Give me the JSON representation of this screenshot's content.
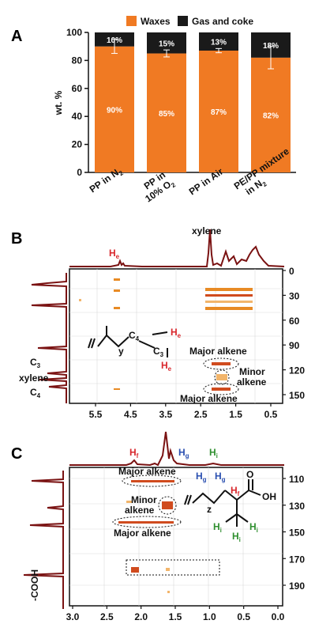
{
  "colors": {
    "waxes": "#f07a23",
    "gas_coke": "#1a1a1a",
    "trace": "#7a1212",
    "red_label": "#d8262b",
    "blue_label": "#2a4fb0",
    "green_label": "#2f8f2f"
  },
  "chart_data": [
    {
      "panel": "A",
      "type": "bar",
      "ylabel": "wt. %",
      "ylim": [
        0,
        100
      ],
      "yticks": [
        "0",
        "20",
        "40",
        "60",
        "80",
        "100"
      ],
      "categories": [
        "PP in N2",
        "PP in 10% O2",
        "PP in Air",
        "PE/PP mixture in N2"
      ],
      "legend": [
        "Waxes",
        "Gas and coke"
      ],
      "legend_position": "top",
      "series": [
        {
          "name": "Waxes",
          "values": [
            90,
            85,
            87,
            82
          ],
          "labels": [
            "90%",
            "85%",
            "87%",
            "82%"
          ],
          "error": [
            5,
            2.5,
            1.5,
            8
          ]
        },
        {
          "name": "Gas and coke",
          "values": [
            10,
            15,
            13,
            18
          ],
          "labels": [
            "10%",
            "15%",
            "13%",
            "18%"
          ]
        }
      ]
    },
    {
      "panel": "B",
      "type": "heatmap",
      "x_ticks": [
        "5.5",
        "4.5",
        "3.5",
        "2.5",
        "1.5",
        "0.5"
      ],
      "y_ticks": [
        "0",
        "30",
        "60",
        "90",
        "120",
        "150"
      ],
      "top_label": "xylene",
      "top_peak_label": "He",
      "side_labels": [
        "C3",
        "xylene",
        "C4"
      ],
      "annotations": [
        "Major alkene",
        "Minor alkene",
        "Major alkene"
      ],
      "structure_labels": [
        "C4",
        "C3",
        "He",
        "He",
        "y"
      ]
    },
    {
      "panel": "C",
      "type": "heatmap",
      "x_ticks": [
        "3.0",
        "2.5",
        "2.0",
        "1.5",
        "1.0",
        "0.5",
        "0.0"
      ],
      "y_ticks": [
        "110",
        "130",
        "150",
        "170",
        "190"
      ],
      "top_peak_labels": [
        "Hf",
        "Hg",
        "Hi"
      ],
      "side_label": "-COOH",
      "annotations": [
        "Major alkene",
        "Minor alkene",
        "Major alkene"
      ],
      "structure_labels": [
        "Hg",
        "Hg",
        "Hf",
        "Hi",
        "Hi",
        "Hi",
        "OH",
        "O",
        "z"
      ]
    }
  ]
}
